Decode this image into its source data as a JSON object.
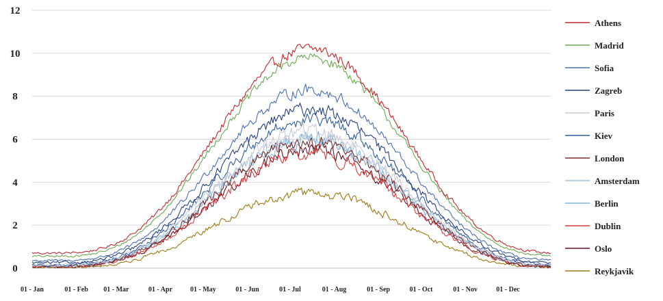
{
  "chart_data": {
    "type": "line",
    "title": "",
    "xlabel": "",
    "ylabel": "",
    "ylim": [
      0,
      12
    ],
    "yticks": [
      "0",
      "2",
      "4",
      "6",
      "8",
      "10",
      "12"
    ],
    "xticks": [
      "01 - Jan",
      "01 - Feb",
      "01 - Mar",
      "01 - Apr",
      "01 - May",
      "01 - Jun",
      "01 - Jul",
      "01 - Aug",
      "01 - Sep",
      "01 - Oct",
      "01 - Nov",
      "01 - Dec"
    ],
    "x_days": [
      1,
      32,
      60,
      91,
      121,
      152,
      182,
      213,
      244,
      274,
      305,
      335
    ],
    "x_range_days": [
      1,
      365
    ],
    "grid": true,
    "legend_position": "right",
    "series": [
      {
        "name": "Athens",
        "color": "#c0282d",
        "base": 0.7,
        "peak": 10.2,
        "noise": 0.35
      },
      {
        "name": "Madrid",
        "color": "#6aa84f",
        "base": 0.55,
        "peak": 9.8,
        "noise": 0.3
      },
      {
        "name": "Sofia",
        "color": "#4a6fb0",
        "base": 0.35,
        "peak": 8.3,
        "noise": 0.35
      },
      {
        "name": "Zagreb",
        "color": "#243f7a",
        "base": 0.25,
        "peak": 7.4,
        "noise": 0.4
      },
      {
        "name": "Paris",
        "color": "#c8c8d8",
        "base": 0.15,
        "peak": 6.4,
        "noise": 0.45
      },
      {
        "name": "Kiev",
        "color": "#2e5e9e",
        "base": 0.15,
        "peak": 6.9,
        "noise": 0.4
      },
      {
        "name": "London",
        "color": "#7a2a2a",
        "base": 0.1,
        "peak": 5.9,
        "noise": 0.45
      },
      {
        "name": "Amsterdam",
        "color": "#9fc0dc",
        "base": 0.12,
        "peak": 6.1,
        "noise": 0.45
      },
      {
        "name": "Berlin",
        "color": "#7fb3d5",
        "base": 0.12,
        "peak": 6.0,
        "noise": 0.45
      },
      {
        "name": "Dublin",
        "color": "#d43d3d",
        "base": 0.08,
        "peak": 5.3,
        "noise": 0.4
      },
      {
        "name": "Oslo",
        "color": "#6b1020",
        "base": 0.05,
        "peak": 5.5,
        "noise": 0.4
      },
      {
        "name": "Reykjavik",
        "color": "#9a7a10",
        "base": 0.02,
        "peak": 3.5,
        "noise": 0.3
      }
    ]
  }
}
